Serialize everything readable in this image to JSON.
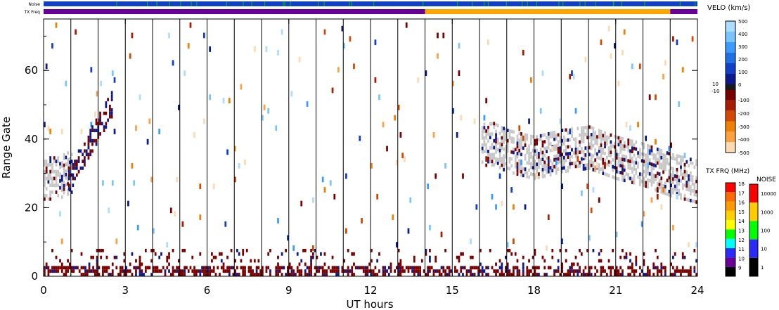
{
  "header": {
    "noise_label": "Noise",
    "txfreq_label": "TX Freq"
  },
  "chart_data": {
    "type": "heatmap",
    "xlabel": "UT hours",
    "ylabel": "Range Gate",
    "xlim": [
      0,
      24
    ],
    "ylim": [
      0,
      75
    ],
    "x_ticks": [
      "0",
      "3",
      "6",
      "9",
      "12",
      "15",
      "18",
      "21",
      "24"
    ],
    "y_ticks": [
      "0",
      "20",
      "40",
      "60"
    ],
    "scan_boundaries_hours": [
      1,
      2,
      3,
      4,
      5,
      6,
      7,
      8,
      9,
      10,
      11,
      12,
      13,
      14,
      15,
      16,
      17,
      18,
      19,
      20,
      21,
      22,
      23
    ],
    "bands": [
      {
        "name": "ground_scatter",
        "type": "ground",
        "points": [
          [
            0.0,
            28
          ],
          [
            0.5,
            28
          ],
          [
            1.0,
            30
          ],
          [
            16.5,
            38
          ],
          [
            17,
            36
          ],
          [
            18,
            34
          ],
          [
            19,
            36
          ],
          [
            20,
            37
          ],
          [
            21,
            34
          ],
          [
            22,
            32
          ],
          [
            23,
            29
          ],
          [
            24,
            27
          ]
        ]
      },
      {
        "name": "low_gate_echo",
        "type": "low",
        "x_range": [
          0,
          24
        ],
        "gate_range": [
          0,
          8
        ]
      }
    ],
    "txfreq_segments": [
      {
        "start": 0,
        "end": 14.0,
        "mhz": 10
      },
      {
        "start": 14.0,
        "end": 23.0,
        "mhz": 15
      },
      {
        "start": 23.0,
        "end": 24,
        "mhz": 10
      }
    ],
    "noise_level": 10,
    "velo_colorbar": {
      "title": "VELO (km/s)",
      "labels": [
        "500",
        "400",
        "300",
        "200",
        "100",
        "0",
        "10",
        "-10",
        "-100",
        "-200",
        "-300",
        "-400",
        "-500"
      ],
      "colors": [
        "#aaddff",
        "#77c6ff",
        "#3a9cff",
        "#1f6fe6",
        "#1140c8",
        "#0d1a8c",
        "#1a1a1a",
        "#7a0000",
        "#a81c00",
        "#d44a00",
        "#f08000",
        "#ffa040",
        "#ffd9b0"
      ]
    },
    "txfreq_colorbar": {
      "title": "TX FRQ (MHz)",
      "labels": [
        "18",
        "17",
        "16",
        "15",
        "14",
        "13",
        "12",
        "11",
        "10",
        "9"
      ],
      "colors": [
        "#ff0000",
        "#ff6a00",
        "#ff9a00",
        "#ffd000",
        "#ffff00",
        "#00ff00",
        "#00ffff",
        "#2a2aff",
        "#6a0099",
        "#000000"
      ]
    },
    "noise_colorbar": {
      "title": "NOISE",
      "labels": [
        "10000",
        "1000",
        "100",
        "10",
        "1"
      ],
      "colors": [
        "#ff0000",
        "#ffcc00",
        "#00ff00",
        "#2a2aff",
        "#000000"
      ]
    }
  }
}
